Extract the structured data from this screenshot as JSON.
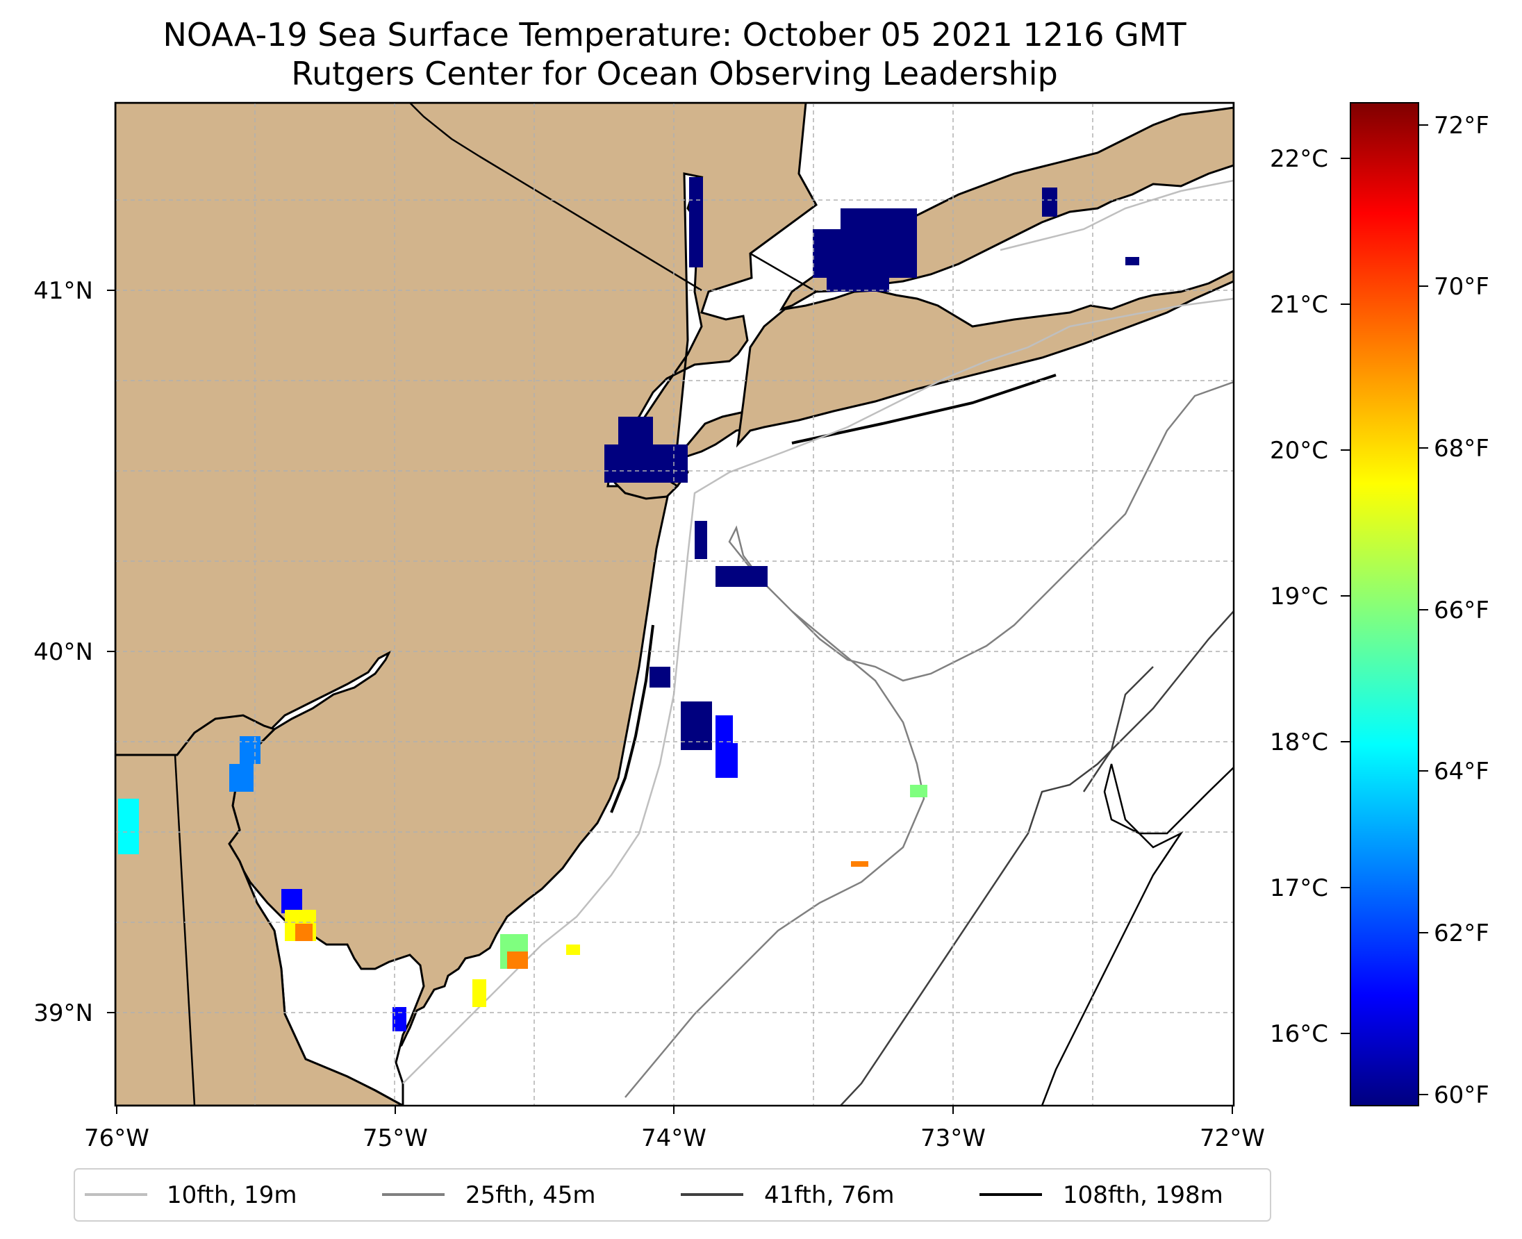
{
  "title": {
    "line1": "NOAA-19 Sea Surface Temperature: October 05 2021 1216 GMT",
    "line2": "Rutgers Center for Ocean Observing Leadership"
  },
  "map": {
    "lon_range": [
      -76,
      -72
    ],
    "lat_range": [
      38.75,
      41.5
    ],
    "land_color": "#d2b48c",
    "ocean_color": "#ffffff",
    "gridlines": true,
    "x_ticks": [
      "76°W",
      "75°W",
      "74°W",
      "73°W",
      "72°W"
    ],
    "y_ticks": [
      "41°N",
      "40°N",
      "39°N"
    ]
  },
  "colorbar": {
    "colormap": "jet",
    "celsius_ticks": [
      "22°C",
      "21°C",
      "20°C",
      "19°C",
      "18°C",
      "17°C",
      "16°C"
    ],
    "fahrenheit_ticks": [
      "72°F",
      "70°F",
      "68°F",
      "66°F",
      "64°F",
      "62°F",
      "60°F"
    ],
    "colors": [
      "#00007f",
      "#0000ff",
      "#007fff",
      "#00ffff",
      "#7fff7f",
      "#ffff00",
      "#ff7f00",
      "#ff0000",
      "#7f0000"
    ]
  },
  "legend": {
    "placement": "bottom-center",
    "items": [
      {
        "label": "10fth, 19m",
        "color": "#bfbfbf"
      },
      {
        "label": "25fth, 45m",
        "color": "#808080"
      },
      {
        "label": "41fth, 76m",
        "color": "#404040"
      },
      {
        "label": "108fth, 198m",
        "color": "#000000"
      }
    ]
  }
}
